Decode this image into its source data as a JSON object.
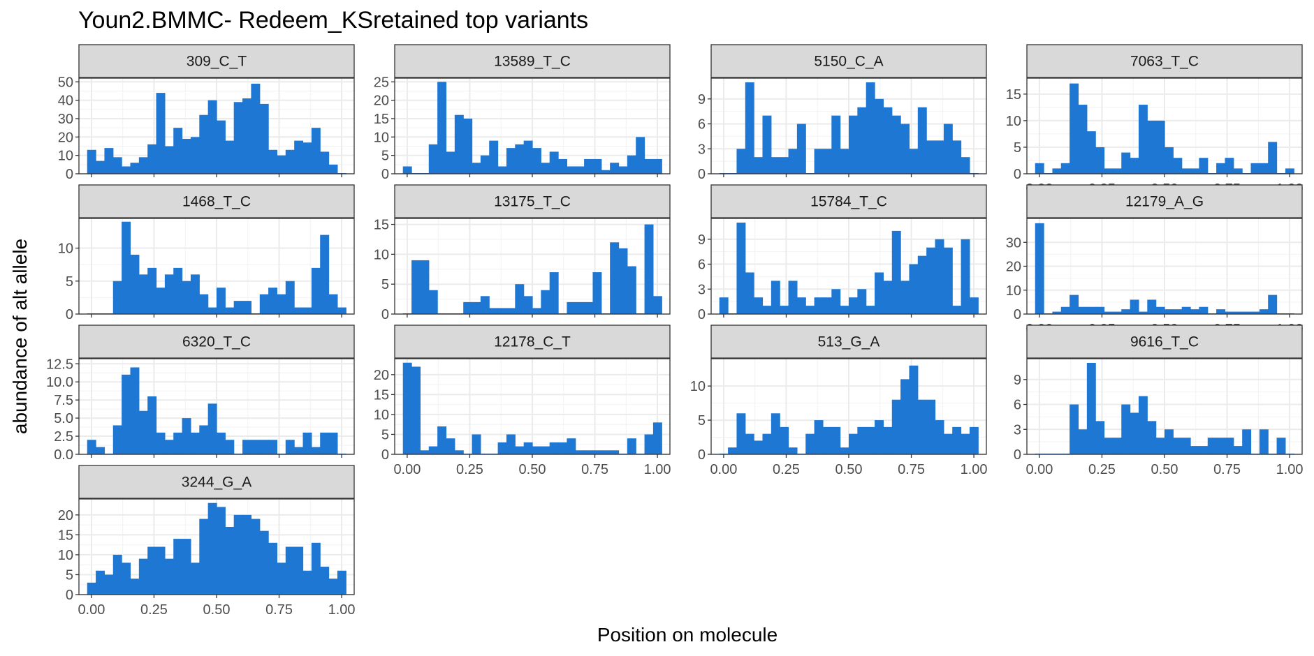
{
  "chart_data": {
    "type": "bar",
    "title": "Youn2.BMMC- Redeem_KSretained top variants",
    "xlabel": "Position on molecule",
    "ylabel": "abundance of alt allele",
    "facet_layout": "wrap, 4 columns, free y scales",
    "bar_color": "#1f77d4",
    "strip_fill": "#d9d9d9",
    "grid": true,
    "xlim": [
      -0.05,
      1.05
    ],
    "x_ticks": [
      "0.00",
      "0.25",
      "0.50",
      "0.75",
      "1.00"
    ],
    "x_tick_values": [
      0,
      0.25,
      0.5,
      0.75,
      1
    ],
    "bins": [
      0.0,
      0.0345,
      0.069,
      0.1034,
      0.1379,
      0.1724,
      0.2069,
      0.2414,
      0.2759,
      0.3103,
      0.3448,
      0.3793,
      0.4138,
      0.4483,
      0.4828,
      0.5172,
      0.5517,
      0.5862,
      0.6207,
      0.6552,
      0.6897,
      0.7241,
      0.7586,
      0.7931,
      0.8276,
      0.8621,
      0.8966,
      0.931,
      0.9655,
      1.0
    ],
    "panels": [
      {
        "name": "309_C_T",
        "ylim": [
          0,
          52
        ],
        "y_ticks": [
          0,
          10,
          20,
          30,
          40,
          50
        ],
        "y_tick_labels": [
          "0",
          "10",
          "20",
          "30",
          "40",
          "50"
        ],
        "x_axis_labels_shown": false,
        "values": [
          13,
          7,
          14,
          9,
          4,
          6,
          9,
          16,
          44,
          15,
          25,
          19,
          20,
          32,
          40,
          29,
          18,
          39,
          41,
          49,
          38,
          13,
          10,
          13,
          18,
          17,
          25,
          12,
          5,
          0
        ]
      },
      {
        "name": "13589_T_C",
        "ylim": [
          0,
          26
        ],
        "y_ticks": [
          0,
          5,
          10,
          15,
          20,
          25
        ],
        "y_tick_labels": [
          "0",
          "5",
          "10",
          "15",
          "20",
          "25"
        ],
        "x_axis_labels_shown": false,
        "values": [
          2,
          0,
          0,
          8,
          25,
          6,
          16,
          15,
          3,
          5,
          9,
          2,
          7,
          8,
          9,
          7,
          3,
          6,
          4,
          2,
          2,
          4,
          4,
          1,
          3,
          2,
          5,
          10,
          4,
          4
        ]
      },
      {
        "name": "5150_C_A",
        "ylim": [
          0,
          11.5
        ],
        "y_ticks": [
          0,
          3,
          6,
          9
        ],
        "y_tick_labels": [
          "0",
          "3",
          "6",
          "9"
        ],
        "x_axis_labels_shown": false,
        "values": [
          0,
          0,
          3,
          11,
          2,
          7,
          2,
          2,
          3,
          6,
          0,
          3,
          3,
          7,
          3,
          7,
          8,
          11,
          9,
          8,
          7,
          6,
          3,
          8,
          4,
          4,
          6,
          4,
          2,
          0
        ]
      },
      {
        "name": "7063_T_C",
        "ylim": [
          0,
          18
        ],
        "y_ticks": [
          0,
          5,
          10,
          15
        ],
        "y_tick_labels": [
          "0",
          "5",
          "10",
          "15"
        ],
        "x_axis_labels_shown": true,
        "values": [
          2,
          0,
          1,
          2,
          17,
          13,
          8,
          5,
          1,
          1,
          4,
          3,
          13,
          10,
          10,
          5,
          3,
          1,
          1,
          3,
          0,
          2,
          3,
          1,
          0,
          2,
          2,
          6,
          0,
          1
        ]
      },
      {
        "name": "1468_T_C",
        "ylim": [
          0,
          14.5
        ],
        "y_ticks": [
          0,
          5,
          10
        ],
        "y_tick_labels": [
          "0",
          "5",
          "10"
        ],
        "x_axis_labels_shown": false,
        "values": [
          0,
          0,
          0,
          5,
          14,
          9,
          6,
          7,
          4,
          6,
          7,
          5,
          6,
          3,
          1,
          4,
          1,
          2,
          2,
          0,
          3,
          4,
          3,
          5,
          1,
          1,
          7,
          12,
          3,
          1
        ]
      },
      {
        "name": "13175_T_C",
        "ylim": [
          0,
          16
        ],
        "y_ticks": [
          0,
          5,
          10,
          15
        ],
        "y_tick_labels": [
          "0",
          "5",
          "10",
          "15"
        ],
        "x_axis_labels_shown": false,
        "values": [
          0,
          9,
          9,
          4,
          0,
          0,
          0,
          2,
          2,
          3,
          1,
          1,
          1,
          5,
          3,
          1,
          4,
          7,
          0,
          2,
          2,
          2,
          7,
          0,
          12,
          11,
          8,
          0,
          15,
          3
        ]
      },
      {
        "name": "15784_T_C",
        "ylim": [
          0,
          11.5
        ],
        "y_ticks": [
          0,
          3,
          6,
          9
        ],
        "y_tick_labels": [
          "0",
          "3",
          "6",
          "9"
        ],
        "x_axis_labels_shown": false,
        "values": [
          2,
          0,
          11,
          5,
          2,
          1,
          4,
          1,
          4,
          2,
          1,
          2,
          2,
          3,
          1,
          2,
          3,
          1,
          5,
          4,
          10,
          4,
          6,
          7,
          8,
          9,
          8,
          1,
          9,
          2
        ]
      },
      {
        "name": "12179_A_G",
        "ylim": [
          0,
          40
        ],
        "y_ticks": [
          0,
          10,
          20,
          30
        ],
        "y_tick_labels": [
          "0",
          "10",
          "20",
          "30"
        ],
        "x_axis_labels_shown": true,
        "values": [
          38,
          0,
          1,
          3,
          8,
          3,
          3,
          3,
          1,
          1,
          2,
          6,
          1,
          6,
          3,
          2,
          2,
          3,
          2,
          3,
          0,
          2,
          1,
          1,
          1,
          1,
          2,
          8,
          0,
          0
        ]
      },
      {
        "name": "6320_T_C",
        "ylim": [
          0,
          13.2
        ],
        "y_ticks": [
          0,
          2.5,
          5,
          7.5,
          10,
          12.5
        ],
        "y_tick_labels": [
          "0.0",
          "2.5",
          "5.0",
          "7.5",
          "10.0",
          "12.5"
        ],
        "x_axis_labels_shown": false,
        "values": [
          2,
          1,
          0,
          4,
          11,
          12,
          6,
          8,
          3,
          2,
          3,
          5,
          3,
          4,
          7,
          3,
          2,
          0,
          2,
          2,
          2,
          2,
          0,
          2,
          1,
          3,
          1,
          3,
          3,
          0
        ]
      },
      {
        "name": "12178_C_T",
        "ylim": [
          0,
          24
        ],
        "y_ticks": [
          0,
          5,
          10,
          15,
          20
        ],
        "y_tick_labels": [
          "0",
          "5",
          "10",
          "15",
          "20"
        ],
        "x_axis_labels_shown": true,
        "values": [
          23,
          22,
          1,
          2,
          7,
          4,
          1,
          0,
          5,
          0,
          0,
          3,
          5,
          2,
          3,
          2,
          2,
          3,
          3,
          4,
          1,
          1,
          1,
          1,
          1,
          0,
          4,
          0,
          5,
          8
        ]
      },
      {
        "name": "513_G_A",
        "ylim": [
          0,
          14
        ],
        "y_ticks": [
          0,
          5,
          10
        ],
        "y_tick_labels": [
          "0",
          "5",
          "10"
        ],
        "x_axis_labels_shown": true,
        "values": [
          0,
          1,
          6,
          3,
          2,
          3,
          6,
          4,
          1,
          0,
          3,
          5,
          4,
          4,
          1,
          3,
          4,
          4,
          5,
          4,
          8,
          11,
          13,
          8,
          8,
          5,
          3,
          4,
          3,
          4
        ]
      },
      {
        "name": "9616_T_C",
        "ylim": [
          0,
          11.5
        ],
        "y_ticks": [
          0,
          3,
          6,
          9
        ],
        "y_tick_labels": [
          "0",
          "3",
          "6",
          "9"
        ],
        "x_axis_labels_shown": true,
        "values": [
          0,
          0,
          0,
          0,
          6,
          3,
          11,
          4,
          2,
          2,
          6,
          5,
          7,
          4,
          2,
          3,
          2,
          2,
          1,
          1,
          2,
          2,
          2,
          1,
          3,
          0,
          3,
          0,
          2,
          0
        ]
      },
      {
        "name": "3244_G_A",
        "ylim": [
          0,
          24
        ],
        "y_ticks": [
          0,
          5,
          10,
          15,
          20
        ],
        "y_tick_labels": [
          "0",
          "5",
          "10",
          "15",
          "20"
        ],
        "x_axis_labels_shown": true,
        "values": [
          3,
          6,
          5,
          10,
          8,
          4,
          9,
          12,
          12,
          9,
          14,
          14,
          8,
          19,
          23,
          22,
          17,
          20,
          20,
          19,
          16,
          13,
          8,
          12,
          12,
          6,
          13,
          7,
          4,
          6
        ]
      }
    ]
  }
}
